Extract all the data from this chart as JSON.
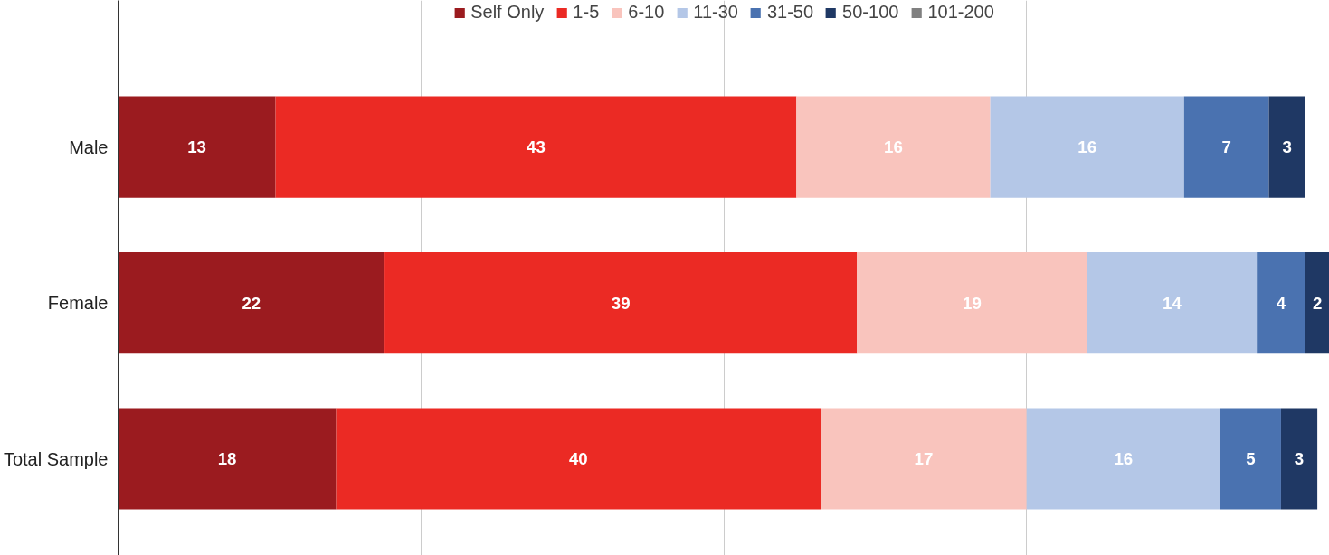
{
  "chart_data": {
    "type": "bar",
    "orientation": "horizontal",
    "stacked": true,
    "categories": [
      "Male",
      "Female",
      "Total Sample"
    ],
    "series": [
      {
        "name": "Self Only",
        "color": "#9b1b1f",
        "values": [
          13,
          22,
          18
        ]
      },
      {
        "name": "1-5",
        "color": "#eb2a24",
        "values": [
          43,
          39,
          40
        ]
      },
      {
        "name": "6-10",
        "color": "#f9c4bd",
        "values": [
          16,
          19,
          17
        ]
      },
      {
        "name": "11-30",
        "color": "#b4c7e7",
        "values": [
          16,
          14,
          16
        ]
      },
      {
        "name": "31-50",
        "color": "#4a72b0",
        "values": [
          7,
          4,
          5
        ]
      },
      {
        "name": "50-100",
        "color": "#1f3864",
        "values": [
          3,
          2,
          3
        ]
      },
      {
        "name": "101-200",
        "color": "#808080",
        "values": [
          null,
          null,
          null
        ]
      }
    ],
    "xlim": [
      0,
      100
    ],
    "xticks": [
      {
        "value": 0,
        "label": null
      },
      {
        "value": 25,
        "label": null
      },
      {
        "value": 50,
        "label": null
      },
      {
        "value": 75,
        "label": null
      }
    ],
    "tick_labels": "y",
    "grid": "x",
    "legend": "top",
    "data_labels": true
  }
}
